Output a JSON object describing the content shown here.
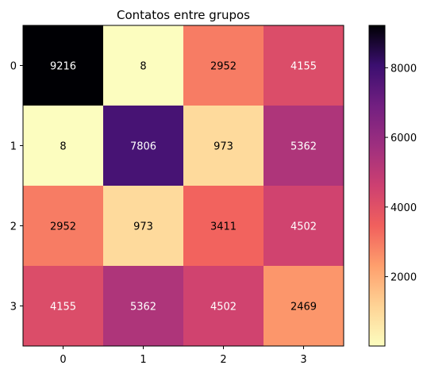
{
  "chart_data": {
    "type": "heatmap",
    "title": "Contatos entre grupos",
    "rows": [
      "0",
      "1",
      "2",
      "3"
    ],
    "cols": [
      "0",
      "1",
      "2",
      "3"
    ],
    "values": [
      [
        9216,
        8,
        2952,
        4155
      ],
      [
        8,
        7806,
        973,
        5362
      ],
      [
        2952,
        973,
        3411,
        4502
      ],
      [
        4155,
        5362,
        4502,
        2469
      ]
    ],
    "colormap": "magma_r",
    "vmin": 8,
    "vmax": 9216,
    "colorbar_ticks": [
      "2000",
      "4000",
      "6000",
      "8000"
    ],
    "colorbar_tick_values": [
      2000,
      4000,
      6000,
      8000
    ]
  }
}
